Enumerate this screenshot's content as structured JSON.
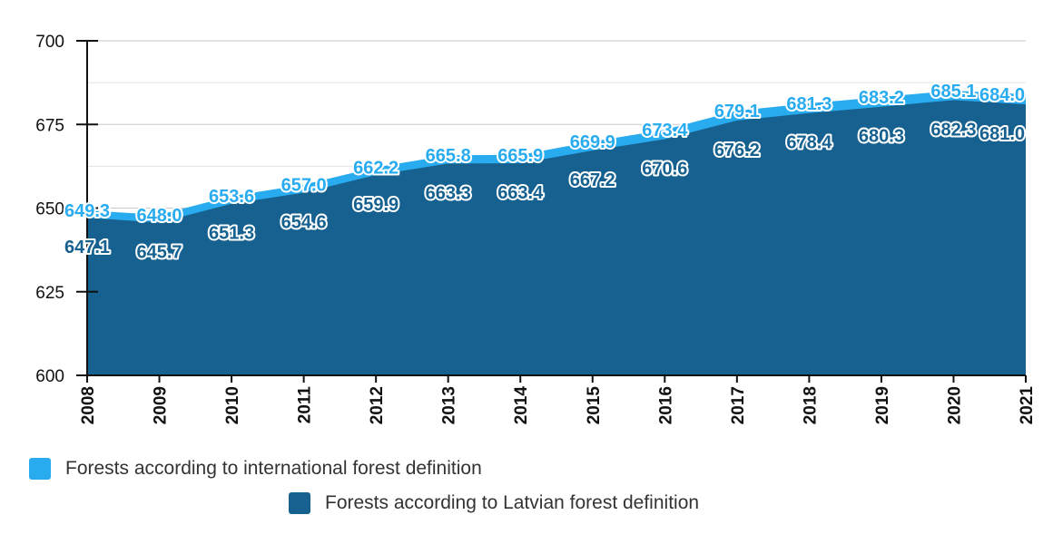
{
  "chart_data": {
    "type": "area",
    "x": [
      "2008",
      "2009",
      "2010",
      "2011",
      "2012",
      "2013",
      "2014",
      "2015",
      "2016",
      "2017",
      "2018",
      "2019",
      "2020",
      "2021"
    ],
    "series": [
      {
        "name": "Forests according to international forest definition",
        "values": [
          649.3,
          648.0,
          653.6,
          657.0,
          662.2,
          665.8,
          665.9,
          669.9,
          673.4,
          679.1,
          681.3,
          683.2,
          685.1,
          684.0
        ],
        "labels": [
          "649.3",
          "648.0",
          "653.6",
          "657.0",
          "662.2",
          "665.8",
          "665.9",
          "669.9",
          "673.4",
          "679.1",
          "681.3",
          "683.2",
          "685.1",
          "684.0"
        ]
      },
      {
        "name": "Forests according to Latvian forest definition",
        "values": [
          647.1,
          645.7,
          651.3,
          654.6,
          659.9,
          663.3,
          663.4,
          667.2,
          670.6,
          676.2,
          678.4,
          680.3,
          682.3,
          681.0
        ],
        "labels": [
          "647.1",
          "645.7",
          "651.3",
          "654.6",
          "659.9",
          "663.3",
          "663.4",
          "667.2",
          "670.6",
          "676.2",
          "678.4",
          "680.3",
          "682.3",
          "681.0"
        ]
      }
    ],
    "ylim": [
      600,
      700
    ],
    "yticks": [
      "600",
      "625",
      "650",
      "675",
      "700"
    ],
    "grid": true,
    "legend_position": "bottom",
    "colors": [
      "#29abf0",
      "#16618f"
    ]
  }
}
